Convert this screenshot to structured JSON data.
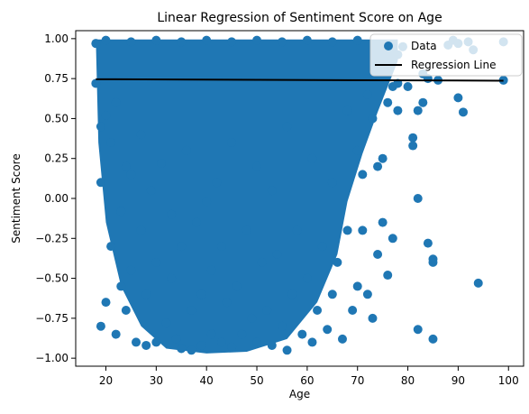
{
  "chart_data": {
    "type": "scatter",
    "title": "Linear Regression of Sentiment Score on Age",
    "xlabel": "Age",
    "ylabel": "Sentiment Score",
    "xlim": [
      14,
      103
    ],
    "ylim": [
      -1.05,
      1.05
    ],
    "x_ticks": [
      20,
      30,
      40,
      50,
      60,
      70,
      80,
      90,
      100
    ],
    "x_tick_labels": [
      "20",
      "30",
      "40",
      "50",
      "60",
      "70",
      "80",
      "90",
      "100"
    ],
    "y_ticks": [
      -1.0,
      -0.75,
      -0.5,
      -0.25,
      0.0,
      0.25,
      0.5,
      0.75,
      1.0
    ],
    "y_tick_labels": [
      "−1.00",
      "−0.75",
      "−0.50",
      "−0.25",
      "0.00",
      "0.25",
      "0.50",
      "0.75",
      "1.00"
    ],
    "grid": false,
    "legend_position": "top-right",
    "legend": [
      "Data",
      "Regression Line"
    ],
    "colors": {
      "data": "#1f77b4",
      "regression": "#000000"
    },
    "series": [
      {
        "name": "Data",
        "kind": "scatter",
        "points": [
          [
            18,
            0.97
          ],
          [
            18,
            0.72
          ],
          [
            19,
            0.45
          ],
          [
            19,
            -0.8
          ],
          [
            19,
            0.1
          ],
          [
            20,
            0.52
          ],
          [
            20,
            -0.65
          ],
          [
            21,
            0.35
          ],
          [
            21,
            -0.3
          ],
          [
            22,
            -0.85
          ],
          [
            22,
            0.6
          ],
          [
            23,
            -0.08
          ],
          [
            23,
            -0.55
          ],
          [
            24,
            0.2
          ],
          [
            24,
            -0.7
          ],
          [
            25,
            -0.45
          ],
          [
            25,
            0.15
          ],
          [
            26,
            -0.9
          ],
          [
            27,
            -0.2
          ],
          [
            27,
            0.4
          ],
          [
            28,
            -0.92
          ],
          [
            28,
            -0.6
          ],
          [
            29,
            0.05
          ],
          [
            30,
            -0.4
          ],
          [
            30,
            -0.9
          ],
          [
            31,
            0.22
          ],
          [
            32,
            -0.78
          ],
          [
            33,
            -0.5
          ],
          [
            33,
            -0.1
          ],
          [
            34,
            -0.88
          ],
          [
            35,
            -0.3
          ],
          [
            35,
            -0.94
          ],
          [
            36,
            0.3
          ],
          [
            37,
            -0.7
          ],
          [
            37,
            -0.95
          ],
          [
            38,
            -0.15
          ],
          [
            39,
            -0.6
          ],
          [
            39,
            -0.92
          ],
          [
            40,
            -0.02
          ],
          [
            41,
            -0.85
          ],
          [
            41,
            -0.45
          ],
          [
            42,
            0.1
          ],
          [
            43,
            -0.9
          ],
          [
            43,
            -0.3
          ],
          [
            44,
            -0.65
          ],
          [
            45,
            -0.93
          ],
          [
            45,
            0.35
          ],
          [
            46,
            -0.55
          ],
          [
            47,
            -0.85
          ],
          [
            48,
            -0.2
          ],
          [
            49,
            -0.75
          ],
          [
            50,
            0.2
          ],
          [
            50,
            -0.9
          ],
          [
            51,
            -0.4
          ],
          [
            52,
            -0.7
          ],
          [
            53,
            -0.92
          ],
          [
            53,
            0.05
          ],
          [
            54,
            -0.35
          ],
          [
            55,
            -0.8
          ],
          [
            56,
            -0.95
          ],
          [
            56,
            0.45
          ],
          [
            57,
            -0.6
          ],
          [
            58,
            -0.2
          ],
          [
            59,
            -0.85
          ],
          [
            60,
            -0.5
          ],
          [
            61,
            0.25
          ],
          [
            61,
            -0.9
          ],
          [
            62,
            -0.7
          ],
          [
            63,
            -0.3
          ],
          [
            64,
            -0.82
          ],
          [
            65,
            -0.6
          ],
          [
            65,
            0.1
          ],
          [
            66,
            -0.4
          ],
          [
            67,
            -0.88
          ],
          [
            68,
            -0.2
          ],
          [
            68,
            0.55
          ],
          [
            69,
            -0.7
          ],
          [
            70,
            -0.55
          ],
          [
            70,
            0.3
          ],
          [
            71,
            -0.2
          ],
          [
            71,
            0.15
          ],
          [
            72,
            -0.6
          ],
          [
            72,
            0.65
          ],
          [
            73,
            0.5
          ],
          [
            73,
            -0.75
          ],
          [
            74,
            0.2
          ],
          [
            74,
            -0.35
          ],
          [
            75,
            0.25
          ],
          [
            75,
            -0.15
          ],
          [
            76,
            0.6
          ],
          [
            76,
            -0.48
          ],
          [
            77,
            0.7
          ],
          [
            77,
            -0.25
          ],
          [
            78,
            0.55
          ],
          [
            78,
            0.72
          ],
          [
            79,
            0.95
          ],
          [
            80,
            0.7
          ],
          [
            81,
            0.38
          ],
          [
            81,
            0.33
          ],
          [
            82,
            0.0
          ],
          [
            82,
            0.55
          ],
          [
            82,
            -0.82
          ],
          [
            83,
            0.6
          ],
          [
            83,
            0.78
          ],
          [
            84,
            0.75
          ],
          [
            84,
            -0.28
          ],
          [
            85,
            -0.38
          ],
          [
            85,
            -0.4
          ],
          [
            85,
            -0.88
          ],
          [
            86,
            0.74
          ],
          [
            88,
            0.96
          ],
          [
            89,
            0.99
          ],
          [
            90,
            0.97
          ],
          [
            90,
            0.63
          ],
          [
            91,
            0.54
          ],
          [
            92,
            0.98
          ],
          [
            93,
            0.93
          ],
          [
            94,
            -0.53
          ],
          [
            99,
            0.98
          ],
          [
            99,
            0.74
          ],
          [
            20,
            0.99
          ],
          [
            25,
            0.98
          ],
          [
            30,
            0.99
          ],
          [
            35,
            0.98
          ],
          [
            40,
            0.99
          ],
          [
            45,
            0.98
          ],
          [
            50,
            0.99
          ],
          [
            55,
            0.98
          ],
          [
            60,
            0.99
          ],
          [
            65,
            0.98
          ],
          [
            70,
            0.99
          ],
          [
            75,
            0.96
          ],
          [
            78,
            0.9
          ]
        ]
      },
      {
        "name": "Regression Line",
        "kind": "line",
        "x": [
          18,
          99
        ],
        "y": [
          0.746,
          0.737
        ]
      }
    ]
  }
}
